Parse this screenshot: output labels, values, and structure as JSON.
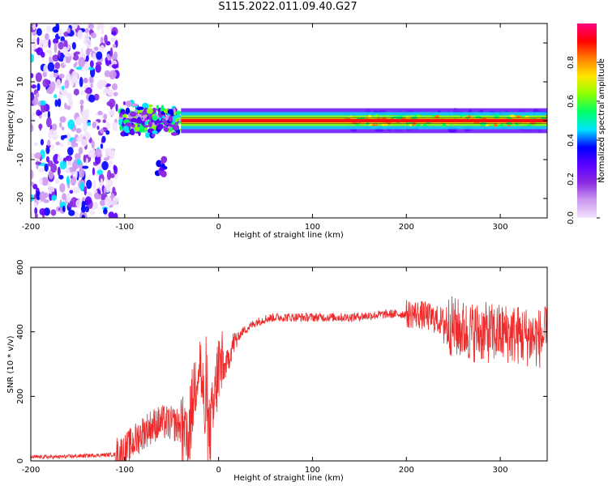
{
  "title": "S115.2022.011.09.40.G27",
  "colors": {
    "snr_line": "#ee2a2a",
    "axes": "#000000",
    "spectrum_band": "#ff1010",
    "colormap": [
      "#f2e2fb",
      "#cc99f0",
      "#8a2be2",
      "#5a00ff",
      "#0000ff",
      "#00e5ff",
      "#00ff66",
      "#8aff00",
      "#ffe800",
      "#ff8000",
      "#ff0000",
      "#ff0080"
    ]
  },
  "chart_data": [
    {
      "type": "heatmap",
      "panel": "top",
      "xlabel": "Height of straight line (km)",
      "ylabel": "Frequency (Hz)",
      "xlim": [
        -200,
        350
      ],
      "ylim": [
        -25,
        25
      ],
      "xticks": [
        "-200",
        "-100",
        "0",
        "100",
        "200",
        "300"
      ],
      "yticks": [
        "20",
        "10",
        "0",
        "-10",
        "-20"
      ],
      "colorbar": {
        "label": "Normalized spectral amplitude",
        "range": [
          0,
          1
        ],
        "ticks": [
          "0.0",
          "0.2",
          "0.4",
          "0.6",
          "0.8"
        ]
      },
      "features": [
        {
          "region": "scattered noise",
          "x_range": [
            -200,
            -108
          ],
          "freq_range": [
            -25,
            25
          ],
          "amplitude": 0.15
        },
        {
          "region": "broadened band",
          "x_range": [
            -105,
            -42
          ],
          "freq_range": [
            -6,
            5
          ],
          "amplitude": 0.45
        },
        {
          "region": "blob",
          "x": -62,
          "freq": -12,
          "amplitude": 0.3
        },
        {
          "region": "narrow tone",
          "x_range": [
            -40,
            135
          ],
          "freq": 0,
          "amplitude": 1.0
        },
        {
          "region": "modulated tone",
          "x_range": [
            135,
            350
          ],
          "freq": 0,
          "amplitude": 0.8
        }
      ]
    },
    {
      "type": "line",
      "panel": "bottom",
      "xlabel": "Height of straight line (km)",
      "ylabel": "SNR (10 * v/v)",
      "xlim": [
        -200,
        350
      ],
      "ylim": [
        0,
        600
      ],
      "xticks": [
        "-200",
        "-100",
        "0",
        "100",
        "200",
        "300"
      ],
      "yticks": [
        "0",
        "200",
        "400",
        "600"
      ],
      "series": [
        {
          "color": "#ee2a2a",
          "x": [
            -200,
            -175,
            -150,
            -125,
            -110,
            -100,
            -90,
            -80,
            -70,
            -60,
            -50,
            -40,
            -35,
            -30,
            -25,
            -20,
            -15,
            -10,
            -5,
            0,
            5,
            10,
            15,
            20,
            25,
            30,
            40,
            50,
            60,
            80,
            100,
            120,
            140,
            160,
            180,
            200,
            210,
            220,
            230,
            240,
            250,
            260,
            270,
            280,
            290,
            300,
            310,
            320,
            330,
            340,
            350
          ],
          "y": [
            12,
            12,
            15,
            18,
            20,
            30,
            60,
            90,
            110,
            120,
            115,
            110,
            40,
            120,
            250,
            320,
            150,
            80,
            160,
            300,
            280,
            310,
            360,
            380,
            400,
            410,
            430,
            440,
            445,
            445,
            445,
            445,
            445,
            450,
            455,
            455,
            455,
            450,
            440,
            430,
            415,
            405,
            400,
            400,
            395,
            395,
            395,
            390,
            385,
            380,
            385
          ]
        }
      ]
    }
  ]
}
